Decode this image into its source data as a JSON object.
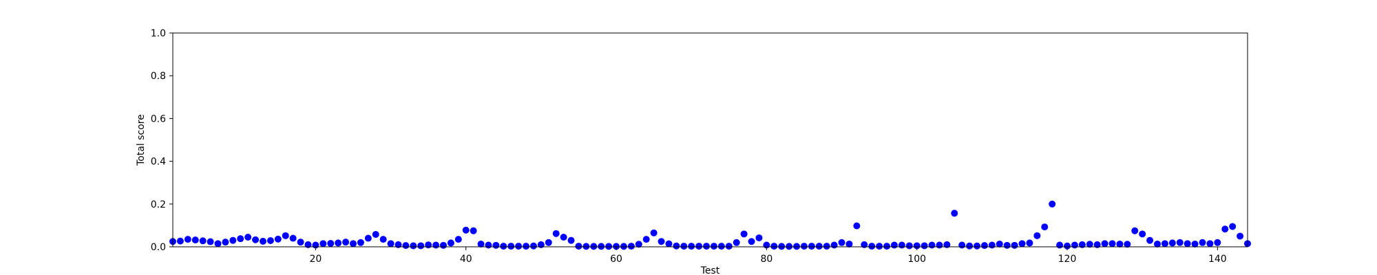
{
  "chart_data": {
    "type": "scatter",
    "title": "",
    "xlabel": "Test",
    "ylabel": "Total score",
    "xlim": [
      1,
      144
    ],
    "ylim": [
      0.0,
      1.0
    ],
    "xticks": [
      20,
      40,
      60,
      80,
      100,
      120,
      140
    ],
    "xtick_labels": [
      "20",
      "40",
      "60",
      "80",
      "100",
      "120",
      "140"
    ],
    "yticks": [
      0.0,
      0.2,
      0.4,
      0.6,
      0.8,
      1.0
    ],
    "ytick_labels": [
      "0.0",
      "0.2",
      "0.4",
      "0.6",
      "0.8",
      "1.0"
    ],
    "grid": false,
    "marker_color": "#0000ff",
    "series": [
      {
        "x": [
          1,
          2,
          3,
          4,
          5,
          6,
          7,
          8,
          9,
          10,
          11,
          12,
          13,
          14,
          15,
          16,
          17,
          18,
          19,
          20,
          21,
          22,
          23,
          24,
          25,
          26,
          27,
          28,
          29,
          30,
          31,
          32,
          33,
          34,
          35,
          36,
          37,
          38,
          39,
          40,
          41,
          42,
          43,
          44,
          45,
          46,
          47,
          48,
          49,
          50,
          51,
          52,
          53,
          54,
          55,
          56,
          57,
          58,
          59,
          60,
          61,
          62,
          63,
          64,
          65,
          66,
          67,
          68,
          69,
          70,
          71,
          72,
          73,
          74,
          75,
          76,
          77,
          78,
          79,
          80,
          81,
          82,
          83,
          84,
          85,
          86,
          87,
          88,
          89,
          90,
          91,
          92,
          93,
          94,
          95,
          96,
          97,
          98,
          99,
          100,
          101,
          102,
          103,
          104,
          105,
          106,
          107,
          108,
          109,
          110,
          111,
          112,
          113,
          114,
          115,
          116,
          117,
          118,
          119,
          120,
          121,
          122,
          123,
          124,
          125,
          126,
          127,
          128,
          129,
          130,
          131,
          132,
          133,
          134,
          135,
          136,
          137,
          138,
          139,
          140,
          141,
          142,
          143,
          144
        ],
        "y": [
          0.025,
          0.027,
          0.035,
          0.032,
          0.028,
          0.024,
          0.015,
          0.022,
          0.03,
          0.038,
          0.045,
          0.033,
          0.026,
          0.029,
          0.036,
          0.052,
          0.04,
          0.022,
          0.01,
          0.008,
          0.015,
          0.016,
          0.018,
          0.022,
          0.015,
          0.02,
          0.04,
          0.058,
          0.035,
          0.015,
          0.01,
          0.006,
          0.005,
          0.005,
          0.009,
          0.008,
          0.007,
          0.018,
          0.035,
          0.078,
          0.075,
          0.013,
          0.008,
          0.007,
          0.003,
          0.003,
          0.003,
          0.003,
          0.004,
          0.01,
          0.02,
          0.062,
          0.045,
          0.03,
          0.003,
          0.002,
          0.002,
          0.002,
          0.002,
          0.002,
          0.002,
          0.003,
          0.012,
          0.035,
          0.065,
          0.025,
          0.014,
          0.004,
          0.003,
          0.003,
          0.003,
          0.003,
          0.003,
          0.003,
          0.003,
          0.02,
          0.06,
          0.025,
          0.042,
          0.008,
          0.003,
          0.002,
          0.002,
          0.002,
          0.003,
          0.003,
          0.003,
          0.003,
          0.008,
          0.02,
          0.013,
          0.098,
          0.01,
          0.003,
          0.003,
          0.003,
          0.008,
          0.008,
          0.005,
          0.005,
          0.005,
          0.008,
          0.008,
          0.01,
          0.157,
          0.008,
          0.004,
          0.004,
          0.006,
          0.008,
          0.013,
          0.007,
          0.007,
          0.015,
          0.018,
          0.052,
          0.093,
          0.2,
          0.008,
          0.004,
          0.008,
          0.01,
          0.012,
          0.01,
          0.015,
          0.015,
          0.013,
          0.012,
          0.075,
          0.06,
          0.03,
          0.013,
          0.015,
          0.018,
          0.02,
          0.015,
          0.013,
          0.02,
          0.015,
          0.02,
          0.083,
          0.095,
          0.05,
          0.015
        ]
      }
    ]
  }
}
